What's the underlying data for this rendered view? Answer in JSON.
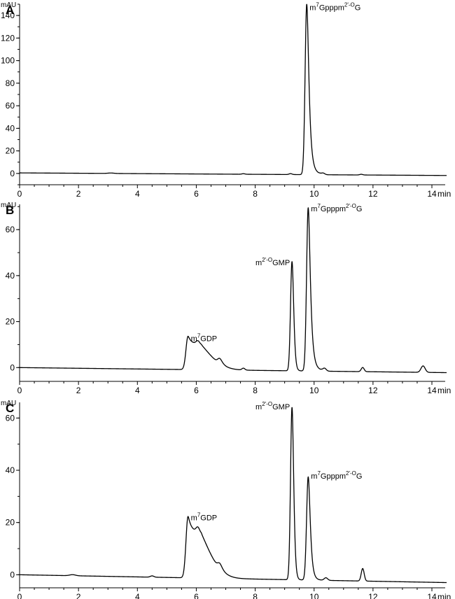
{
  "chart_data": [
    {
      "type": "line",
      "panel": "A",
      "y_unit": "mAU",
      "x_unit": "min",
      "xlim": [
        0,
        14.5
      ],
      "ylim": [
        -10,
        150
      ],
      "x_ticks": [
        0,
        2,
        4,
        6,
        8,
        10,
        12,
        14
      ],
      "y_ticks": [
        0,
        20,
        40,
        60,
        80,
        100,
        120,
        140
      ],
      "baseline": {
        "start": 0.5,
        "end": -1.8
      },
      "peaks": [
        {
          "t": 3.1,
          "h": 0.4,
          "w": 0.1,
          "tail": 0
        },
        {
          "t": 7.6,
          "h": 0.5,
          "w": 0.05,
          "tail": 0
        },
        {
          "t": 9.2,
          "h": 0.8,
          "w": 0.05,
          "tail": 0
        },
        {
          "t": 9.75,
          "h": 151,
          "w": 0.055,
          "tail": 0.06
        },
        {
          "t": 10.3,
          "h": 1.5,
          "w": 0.06,
          "tail": 0
        },
        {
          "t": 11.6,
          "h": 0.6,
          "w": 0.05,
          "tail": 0
        }
      ],
      "labels": [
        {
          "t": 9.75,
          "y": 151,
          "base": "m",
          "sup1": "7",
          "mid": "Gpppm",
          "sup2": "2'-O",
          "end": "G"
        }
      ]
    },
    {
      "type": "line",
      "panel": "B",
      "y_unit": "mAU",
      "x_unit": "min",
      "xlim": [
        0,
        14.5
      ],
      "ylim": [
        -6,
        71
      ],
      "x_ticks": [
        0,
        2,
        4,
        6,
        8,
        10,
        12,
        14
      ],
      "y_ticks": [
        0,
        20,
        40,
        60
      ],
      "baseline": {
        "start": 0.0,
        "end": -2.2
      },
      "peaks": [
        {
          "t": 5.72,
          "h": 14.5,
          "w": 0.07,
          "tail": 0.35
        },
        {
          "t": 6.05,
          "h": 1.5,
          "w": 0.06,
          "tail": 0
        },
        {
          "t": 6.8,
          "h": 2.2,
          "w": 0.07,
          "tail": 0.05
        },
        {
          "t": 7.6,
          "h": 0.8,
          "w": 0.05,
          "tail": 0
        },
        {
          "t": 9.25,
          "h": 47.5,
          "w": 0.05,
          "tail": 0.03
        },
        {
          "t": 9.8,
          "h": 71,
          "w": 0.055,
          "tail": 0.06
        },
        {
          "t": 10.35,
          "h": 1.3,
          "w": 0.06,
          "tail": 0
        },
        {
          "t": 11.65,
          "h": 1.8,
          "w": 0.05,
          "tail": 0
        },
        {
          "t": 13.7,
          "h": 2.8,
          "w": 0.07,
          "tail": 0
        }
      ],
      "labels": [
        {
          "t": 5.72,
          "y": 14.5,
          "base": "m",
          "sup1": "7",
          "mid": "GDP",
          "sup2": "",
          "end": ""
        },
        {
          "t": 9.25,
          "y": 47.5,
          "base": "m",
          "sup1": "2'-O",
          "mid": "GMP",
          "sup2": "",
          "end": ""
        },
        {
          "t": 9.8,
          "y": 71,
          "base": "m",
          "sup1": "7",
          "mid": "Gpppm",
          "sup2": "2'-O",
          "end": "G"
        }
      ]
    },
    {
      "type": "line",
      "panel": "C",
      "y_unit": "mAU",
      "x_unit": "min",
      "xlim": [
        0,
        14.5
      ],
      "ylim": [
        -5,
        66
      ],
      "x_ticks": [
        0,
        2,
        4,
        6,
        8,
        10,
        12,
        14
      ],
      "y_ticks": [
        0,
        20,
        40,
        60
      ],
      "baseline": {
        "start": 0.0,
        "end": -3.0
      },
      "peaks": [
        {
          "t": 1.8,
          "h": 0.4,
          "w": 0.1,
          "tail": 0
        },
        {
          "t": 4.5,
          "h": 0.5,
          "w": 0.06,
          "tail": 0
        },
        {
          "t": 5.72,
          "h": 23.5,
          "w": 0.07,
          "tail": 0.33
        },
        {
          "t": 6.05,
          "h": 2.0,
          "w": 0.06,
          "tail": 0
        },
        {
          "t": 6.8,
          "h": 2.0,
          "w": 0.07,
          "tail": 0.05
        },
        {
          "t": 9.25,
          "h": 66,
          "w": 0.05,
          "tail": 0.03
        },
        {
          "t": 9.8,
          "h": 39.5,
          "w": 0.055,
          "tail": 0.05
        },
        {
          "t": 10.4,
          "h": 1.0,
          "w": 0.06,
          "tail": 0
        },
        {
          "t": 11.65,
          "h": 4.8,
          "w": 0.05,
          "tail": 0
        }
      ],
      "labels": [
        {
          "t": 5.72,
          "y": 23.5,
          "base": "m",
          "sup1": "7",
          "mid": "GDP",
          "sup2": "",
          "end": ""
        },
        {
          "t": 9.25,
          "y": 66,
          "base": "m",
          "sup1": "2'-O",
          "mid": "GMP",
          "sup2": "",
          "end": ""
        },
        {
          "t": 9.8,
          "y": 39.5,
          "base": "m",
          "sup1": "7",
          "mid": "Gpppm",
          "sup2": "2'-O",
          "end": "G"
        }
      ]
    }
  ]
}
